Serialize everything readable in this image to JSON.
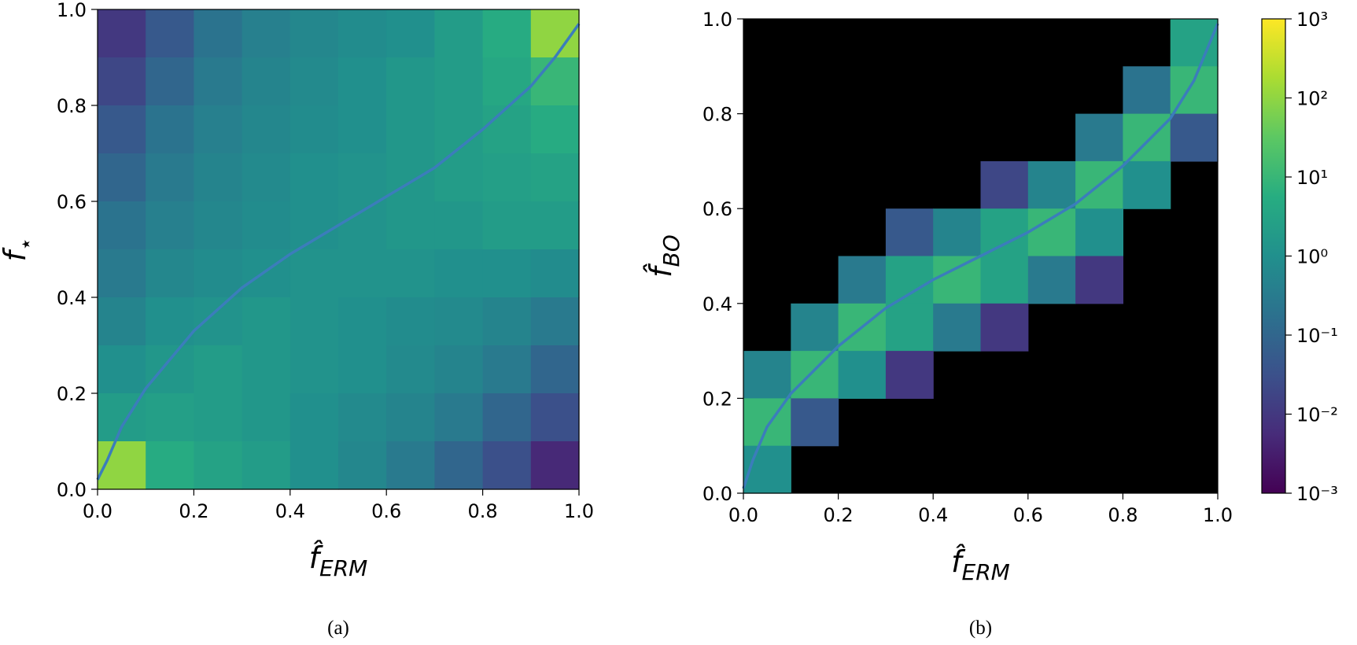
{
  "chart_data": [
    {
      "type": "heatmap",
      "caption": "(a)",
      "xlabel": "f̂",
      "xlabel_sub": "ERM",
      "ylabel": "f",
      "ylabel_sub": "⋆",
      "xlim": [
        0,
        1
      ],
      "ylim": [
        0,
        1
      ],
      "xticks": [
        {
          "value": 0,
          "label": "0.0"
        },
        0.2,
        0.4,
        0.6,
        0.8,
        {
          "value": 1,
          "label": "1.0"
        }
      ],
      "yticks": [
        {
          "value": 0,
          "label": "0.0"
        },
        0.2,
        0.4,
        0.6,
        0.8,
        {
          "value": 1,
          "label": "1.0"
        }
      ],
      "zscale": "log",
      "zlim": [
        0.001,
        1000
      ],
      "colormap": [
        "#440154",
        "#472c7a",
        "#3b518b",
        "#2c718e",
        "#21908d",
        "#27ad81",
        "#5cc863",
        "#aadc32",
        "#fde725"
      ],
      "z": [
        [
          0.01,
          0.05,
          0.2,
          0.4,
          0.6,
          0.8,
          1,
          2,
          5,
          100
        ],
        [
          0.02,
          0.1,
          0.3,
          0.5,
          0.7,
          1,
          1.5,
          2,
          4,
          10
        ],
        [
          0.05,
          0.2,
          0.4,
          0.6,
          0.8,
          1,
          1.5,
          2,
          3,
          5
        ],
        [
          0.1,
          0.3,
          0.5,
          0.7,
          1,
          1.2,
          1.5,
          2,
          2.5,
          3
        ],
        [
          0.2,
          0.4,
          0.6,
          0.8,
          1,
          1.2,
          1.5,
          1.5,
          2,
          2
        ],
        [
          0.3,
          0.6,
          0.8,
          1,
          1.2,
          1.2,
          1.2,
          1,
          1,
          0.8
        ],
        [
          0.5,
          1,
          1.2,
          1.5,
          1.2,
          1,
          0.8,
          0.7,
          0.5,
          0.3
        ],
        [
          1,
          1.5,
          2,
          1.5,
          1.2,
          1,
          0.7,
          0.5,
          0.3,
          0.1
        ],
        [
          2,
          2.5,
          2,
          1.5,
          1,
          0.7,
          0.5,
          0.3,
          0.1,
          0.03
        ],
        [
          100,
          5,
          3,
          2,
          1,
          0.6,
          0.3,
          0.1,
          0.03,
          0.005
        ]
      ],
      "line_color": "#3b7dbb",
      "line_x": [
        0,
        0.02,
        0.05,
        0.1,
        0.2,
        0.3,
        0.4,
        0.5,
        0.6,
        0.7,
        0.8,
        0.9,
        0.95,
        1.0
      ],
      "line_y": [
        0.02,
        0.06,
        0.13,
        0.21,
        0.33,
        0.42,
        0.49,
        0.55,
        0.61,
        0.67,
        0.75,
        0.84,
        0.9,
        0.97
      ]
    },
    {
      "type": "heatmap",
      "caption": "(b)",
      "xlabel": "f̂",
      "xlabel_sub": "ERM",
      "ylabel": "f̂",
      "ylabel_sub": "BO",
      "xlim": [
        0,
        1
      ],
      "ylim": [
        0,
        1
      ],
      "xticks": [
        {
          "value": 0,
          "label": "0.0"
        },
        0.2,
        0.4,
        0.6,
        0.8,
        {
          "value": 1,
          "label": "1.0"
        }
      ],
      "yticks": [
        {
          "value": 0,
          "label": "0.0"
        },
        0.2,
        0.4,
        0.6,
        0.8,
        {
          "value": 1,
          "label": "1.0"
        }
      ],
      "zscale": "log",
      "zlim": [
        0.001,
        1000
      ],
      "colorbar": true,
      "zticks": [
        {
          "value": 0.001,
          "label": "10⁻³"
        },
        {
          "value": 0.01,
          "label": "10⁻²"
        },
        {
          "value": 0.1,
          "label": "10⁻¹"
        },
        {
          "value": 1,
          "label": "10⁰"
        },
        {
          "value": 10,
          "label": "10¹"
        },
        {
          "value": 100,
          "label": "10²"
        },
        {
          "value": 1000,
          "label": "10³"
        }
      ],
      "colormap": [
        "#440154",
        "#472c7a",
        "#3b518b",
        "#2c718e",
        "#21908d",
        "#27ad81",
        "#5cc863",
        "#aadc32",
        "#fde725"
      ],
      "z": [
        [
          null,
          null,
          null,
          null,
          null,
          null,
          null,
          null,
          null,
          3
        ],
        [
          null,
          null,
          null,
          null,
          null,
          null,
          null,
          null,
          0.2,
          10
        ],
        [
          null,
          null,
          null,
          null,
          null,
          null,
          null,
          0.3,
          10,
          0.05
        ],
        [
          null,
          null,
          null,
          null,
          null,
          0.02,
          0.5,
          10,
          1,
          null
        ],
        [
          null,
          null,
          null,
          0.05,
          0.5,
          3,
          10,
          1,
          null,
          null
        ],
        [
          null,
          null,
          0.3,
          3,
          10,
          3,
          0.3,
          0.01,
          null,
          null
        ],
        [
          null,
          0.5,
          10,
          3,
          0.3,
          0.01,
          null,
          null,
          null,
          null
        ],
        [
          0.5,
          10,
          1,
          0.01,
          null,
          null,
          null,
          null,
          null,
          null
        ],
        [
          10,
          0.05,
          null,
          null,
          null,
          null,
          null,
          null,
          null,
          null
        ],
        [
          1,
          null,
          null,
          null,
          null,
          null,
          null,
          null,
          null,
          null
        ]
      ],
      "line_color": "#3b7dbb",
      "line_x": [
        0,
        0.02,
        0.05,
        0.1,
        0.2,
        0.3,
        0.4,
        0.5,
        0.6,
        0.7,
        0.8,
        0.9,
        0.95,
        1.0
      ],
      "line_y": [
        0.01,
        0.07,
        0.14,
        0.21,
        0.31,
        0.39,
        0.45,
        0.5,
        0.55,
        0.61,
        0.69,
        0.79,
        0.87,
        0.99
      ]
    }
  ]
}
